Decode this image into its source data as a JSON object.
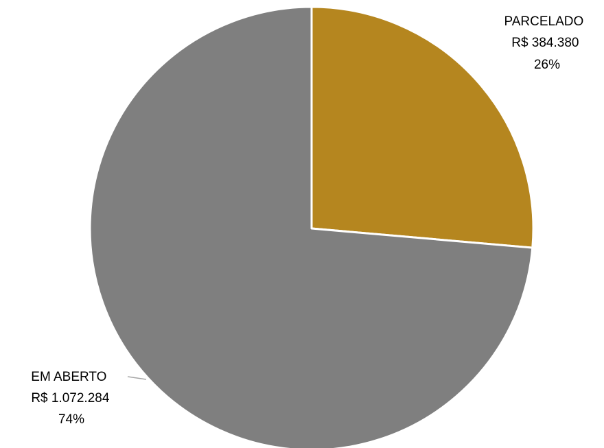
{
  "chart_data": {
    "type": "pie",
    "title": "",
    "start_angle_deg": 0,
    "direction": "clockwise",
    "slices": [
      {
        "category": "PARCELADO",
        "value_text": "R$  384.380",
        "value": 384380,
        "percent_text": "26%",
        "color": "#B5861F"
      },
      {
        "category": "EM ABERTO",
        "value_text": "R$ 1.072.284",
        "value": 1072284,
        "percent_text": "74%",
        "color": "#7F7F7F"
      }
    ],
    "slice_border_color": "#FFFFFF",
    "leader_line_color": "#A6A6A6"
  }
}
